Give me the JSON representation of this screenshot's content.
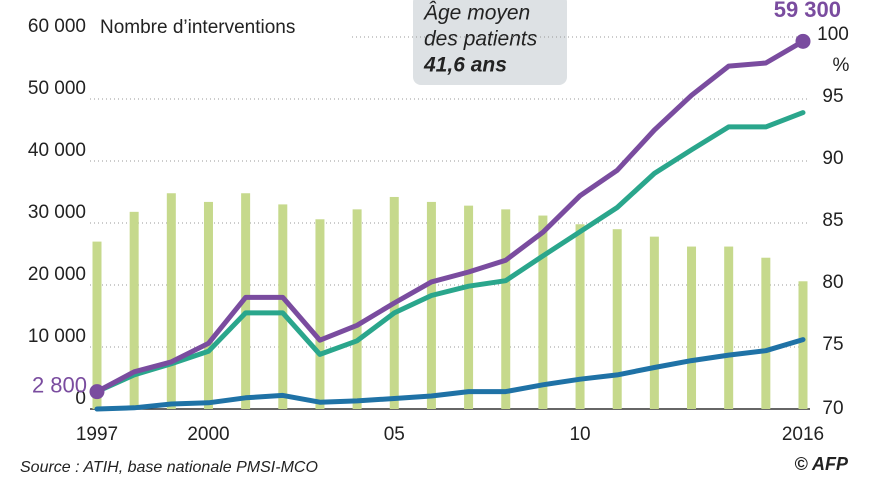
{
  "chart_data": {
    "type": "bar-line",
    "y_label": "Nombre d’interventions",
    "y2_label": "%",
    "annotation": [
      "Âge moyen",
      "des patients",
      "41,6 ans"
    ],
    "source": "Source : ATIH, base nationale PMSI-MCO",
    "credit": "© AFP",
    "x": [
      1997,
      1998,
      1999,
      2000,
      2001,
      2002,
      2003,
      2004,
      2005,
      2006,
      2007,
      2008,
      2009,
      2010,
      2011,
      2012,
      2013,
      2014,
      2015,
      2016
    ],
    "xticks": [
      1997,
      2000,
      {
        "value": 2005,
        "label": "05"
      },
      {
        "value": 2010,
        "label": "10"
      },
      2016
    ],
    "ylim": [
      0,
      60000
    ],
    "yticks": [
      0,
      {
        "value": 10000,
        "label": "10 000"
      },
      {
        "value": 20000,
        "label": "20 000"
      },
      {
        "value": 30000,
        "label": "30 000"
      },
      {
        "value": 40000,
        "label": "40 000"
      },
      {
        "value": 50000,
        "label": "50 000"
      },
      {
        "value": 60000,
        "label": "60 000"
      }
    ],
    "y2lim": [
      70,
      100
    ],
    "y2ticks": [
      70,
      75,
      80,
      85,
      90,
      95,
      100
    ],
    "grid": true,
    "series": [
      {
        "type": "bar",
        "axis": "y2",
        "color": "#c6d98c",
        "values": [
          83.5,
          85.9,
          87.4,
          86.7,
          87.4,
          86.5,
          85.3,
          86.1,
          87.1,
          86.7,
          86.4,
          86.1,
          85.6,
          84.9,
          84.5,
          83.9,
          83.1,
          83.1,
          82.2,
          80.3
        ]
      },
      {
        "type": "line",
        "color": "#1f72a6",
        "values": [
          0,
          200,
          800,
          1000,
          1800,
          2200,
          1100,
          1300,
          1700,
          2100,
          2800,
          2800,
          3900,
          4800,
          5500,
          6700,
          7800,
          8700,
          9400,
          11200
        ]
      },
      {
        "type": "line",
        "color": "#2aa68c",
        "values": [
          2800,
          5500,
          7300,
          9300,
          15500,
          15500,
          8800,
          11000,
          15500,
          18300,
          19800,
          20700,
          24700,
          28600,
          32500,
          38000,
          41800,
          45500,
          45500,
          47800
        ]
      },
      {
        "type": "line",
        "color": "#7a4c9f",
        "values": [
          2800,
          6000,
          7600,
          10600,
          18000,
          18000,
          11100,
          13500,
          17100,
          20500,
          22100,
          24000,
          28500,
          34400,
          38500,
          45000,
          50600,
          55300,
          55800,
          59300
        ],
        "value_labels": [
          "2 800",
          null,
          null,
          null,
          null,
          null,
          null,
          null,
          null,
          null,
          null,
          null,
          null,
          null,
          null,
          null,
          null,
          null,
          null,
          "59 300"
        ]
      }
    ]
  }
}
